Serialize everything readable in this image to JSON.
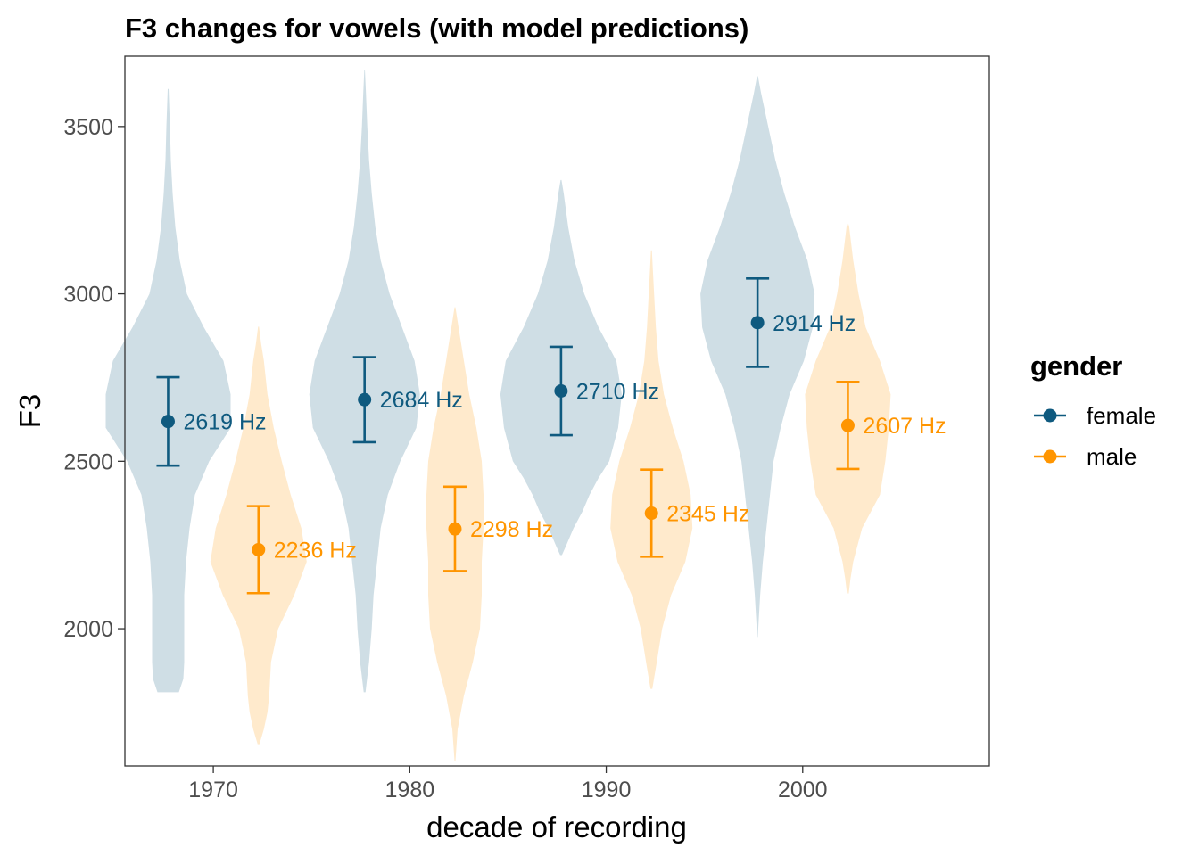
{
  "chart_data": {
    "type": "violin",
    "title": "F3 changes for vowels (with model predictions)",
    "xlabel": "decade of recording",
    "ylabel": "F3",
    "x_ticks": [
      1970,
      1980,
      1990,
      2000
    ],
    "y_ticks": [
      2000,
      2500,
      3000,
      3500
    ],
    "xlim": [
      1965.5,
      2009.5
    ],
    "ylim": [
      1590,
      3710
    ],
    "grid": false,
    "legend": {
      "title": "gender",
      "position": "right"
    },
    "colors": {
      "female": "#0f5a7f",
      "male": "#ff9500"
    },
    "series": [
      {
        "name": "female",
        "offset": -2.3,
        "points": [
          {
            "decade": 1970,
            "estimate": 2619,
            "lower": 2487,
            "upper": 2751,
            "label": "2619 Hz",
            "violin": [
              [
                1810,
                12
              ],
              [
                1850,
                17
              ],
              [
                1900,
                18
              ],
              [
                2000,
                18
              ],
              [
                2100,
                18
              ],
              [
                2200,
                20
              ],
              [
                2300,
                24
              ],
              [
                2400,
                30
              ],
              [
                2500,
                46
              ],
              [
                2600,
                70
              ],
              [
                2700,
                70
              ],
              [
                2800,
                62
              ],
              [
                2900,
                40
              ],
              [
                3000,
                21
              ],
              [
                3100,
                13
              ],
              [
                3200,
                8
              ],
              [
                3300,
                5
              ],
              [
                3400,
                3
              ],
              [
                3500,
                2
              ],
              [
                3612,
                0.5
              ]
            ]
          },
          {
            "decade": 1980,
            "estimate": 2684,
            "lower": 2557,
            "upper": 2811,
            "label": "2684 Hz",
            "violin": [
              [
                1810,
                1
              ],
              [
                1900,
                5
              ],
              [
                2000,
                8
              ],
              [
                2100,
                10
              ],
              [
                2200,
                14
              ],
              [
                2300,
                18
              ],
              [
                2400,
                26
              ],
              [
                2500,
                40
              ],
              [
                2600,
                58
              ],
              [
                2700,
                62
              ],
              [
                2800,
                56
              ],
              [
                2900,
                42
              ],
              [
                3000,
                28
              ],
              [
                3100,
                18
              ],
              [
                3200,
                12
              ],
              [
                3300,
                8
              ],
              [
                3400,
                5
              ],
              [
                3500,
                3
              ],
              [
                3600,
                1.5
              ],
              [
                3670,
                0.3
              ]
            ]
          },
          {
            "decade": 1990,
            "estimate": 2710,
            "lower": 2578,
            "upper": 2842,
            "label": "2710 Hz",
            "violin": [
              [
                2220,
                1
              ],
              [
                2250,
                6
              ],
              [
                2300,
                14
              ],
              [
                2350,
                24
              ],
              [
                2400,
                32
              ],
              [
                2450,
                42
              ],
              [
                2500,
                54
              ],
              [
                2600,
                64
              ],
              [
                2700,
                68
              ],
              [
                2800,
                62
              ],
              [
                2900,
                42
              ],
              [
                3000,
                26
              ],
              [
                3100,
                15
              ],
              [
                3200,
                8
              ],
              [
                3300,
                3
              ],
              [
                3340,
                0.5
              ]
            ]
          },
          {
            "decade": 2000,
            "estimate": 2914,
            "lower": 2782,
            "upper": 3046,
            "label": "2914 Hz",
            "violin": [
              [
                1975,
                0.3
              ],
              [
                2100,
                3
              ],
              [
                2200,
                6
              ],
              [
                2300,
                10
              ],
              [
                2400,
                14
              ],
              [
                2500,
                18
              ],
              [
                2600,
                26
              ],
              [
                2700,
                36
              ],
              [
                2800,
                52
              ],
              [
                2900,
                62
              ],
              [
                3000,
                64
              ],
              [
                3100,
                56
              ],
              [
                3200,
                42
              ],
              [
                3300,
                30
              ],
              [
                3400,
                20
              ],
              [
                3500,
                12
              ],
              [
                3600,
                4
              ],
              [
                3650,
                0.5
              ]
            ]
          }
        ]
      },
      {
        "name": "male",
        "offset": 2.3,
        "points": [
          {
            "decade": 1970,
            "estimate": 2236,
            "lower": 2106,
            "upper": 2366,
            "label": "2236 Hz",
            "violin": [
              [
                1655,
                1
              ],
              [
                1700,
                6
              ],
              [
                1750,
                10
              ],
              [
                1800,
                12
              ],
              [
                1900,
                14
              ],
              [
                2000,
                22
              ],
              [
                2100,
                40
              ],
              [
                2200,
                54
              ],
              [
                2300,
                48
              ],
              [
                2400,
                36
              ],
              [
                2500,
                26
              ],
              [
                2600,
                17
              ],
              [
                2700,
                10
              ],
              [
                2800,
                6
              ],
              [
                2850,
                3
              ],
              [
                2902,
                0.5
              ]
            ]
          },
          {
            "decade": 1980,
            "estimate": 2298,
            "lower": 2172,
            "upper": 2424,
            "label": "2298 Hz",
            "violin": [
              [
                1605,
                0.5
              ],
              [
                1700,
                3
              ],
              [
                1800,
                10
              ],
              [
                1900,
                20
              ],
              [
                2000,
                28
              ],
              [
                2100,
                30
              ],
              [
                2200,
                30
              ],
              [
                2300,
                32
              ],
              [
                2400,
                32
              ],
              [
                2500,
                30
              ],
              [
                2600,
                24
              ],
              [
                2700,
                16
              ],
              [
                2800,
                10
              ],
              [
                2900,
                4
              ],
              [
                2960,
                0.5
              ]
            ]
          },
          {
            "decade": 1990,
            "estimate": 2345,
            "lower": 2215,
            "upper": 2475,
            "label": "2345 Hz",
            "violin": [
              [
                1820,
                1
              ],
              [
                1900,
                6
              ],
              [
                2000,
                12
              ],
              [
                2100,
                22
              ],
              [
                2200,
                38
              ],
              [
                2300,
                46
              ],
              [
                2400,
                44
              ],
              [
                2500,
                36
              ],
              [
                2600,
                24
              ],
              [
                2700,
                14
              ],
              [
                2800,
                8
              ],
              [
                2900,
                5
              ],
              [
                3000,
                3
              ],
              [
                3130,
                0.5
              ]
            ]
          },
          {
            "decade": 2000,
            "estimate": 2607,
            "lower": 2477,
            "upper": 2737,
            "label": "2607 Hz",
            "violin": [
              [
                2105,
                1
              ],
              [
                2150,
                3
              ],
              [
                2200,
                6
              ],
              [
                2300,
                16
              ],
              [
                2400,
                36
              ],
              [
                2500,
                42
              ],
              [
                2600,
                46
              ],
              [
                2700,
                48
              ],
              [
                2800,
                36
              ],
              [
                2900,
                20
              ],
              [
                3000,
                12
              ],
              [
                3100,
                6
              ],
              [
                3200,
                1.5
              ],
              [
                3210,
                0.5
              ]
            ]
          }
        ]
      }
    ]
  }
}
